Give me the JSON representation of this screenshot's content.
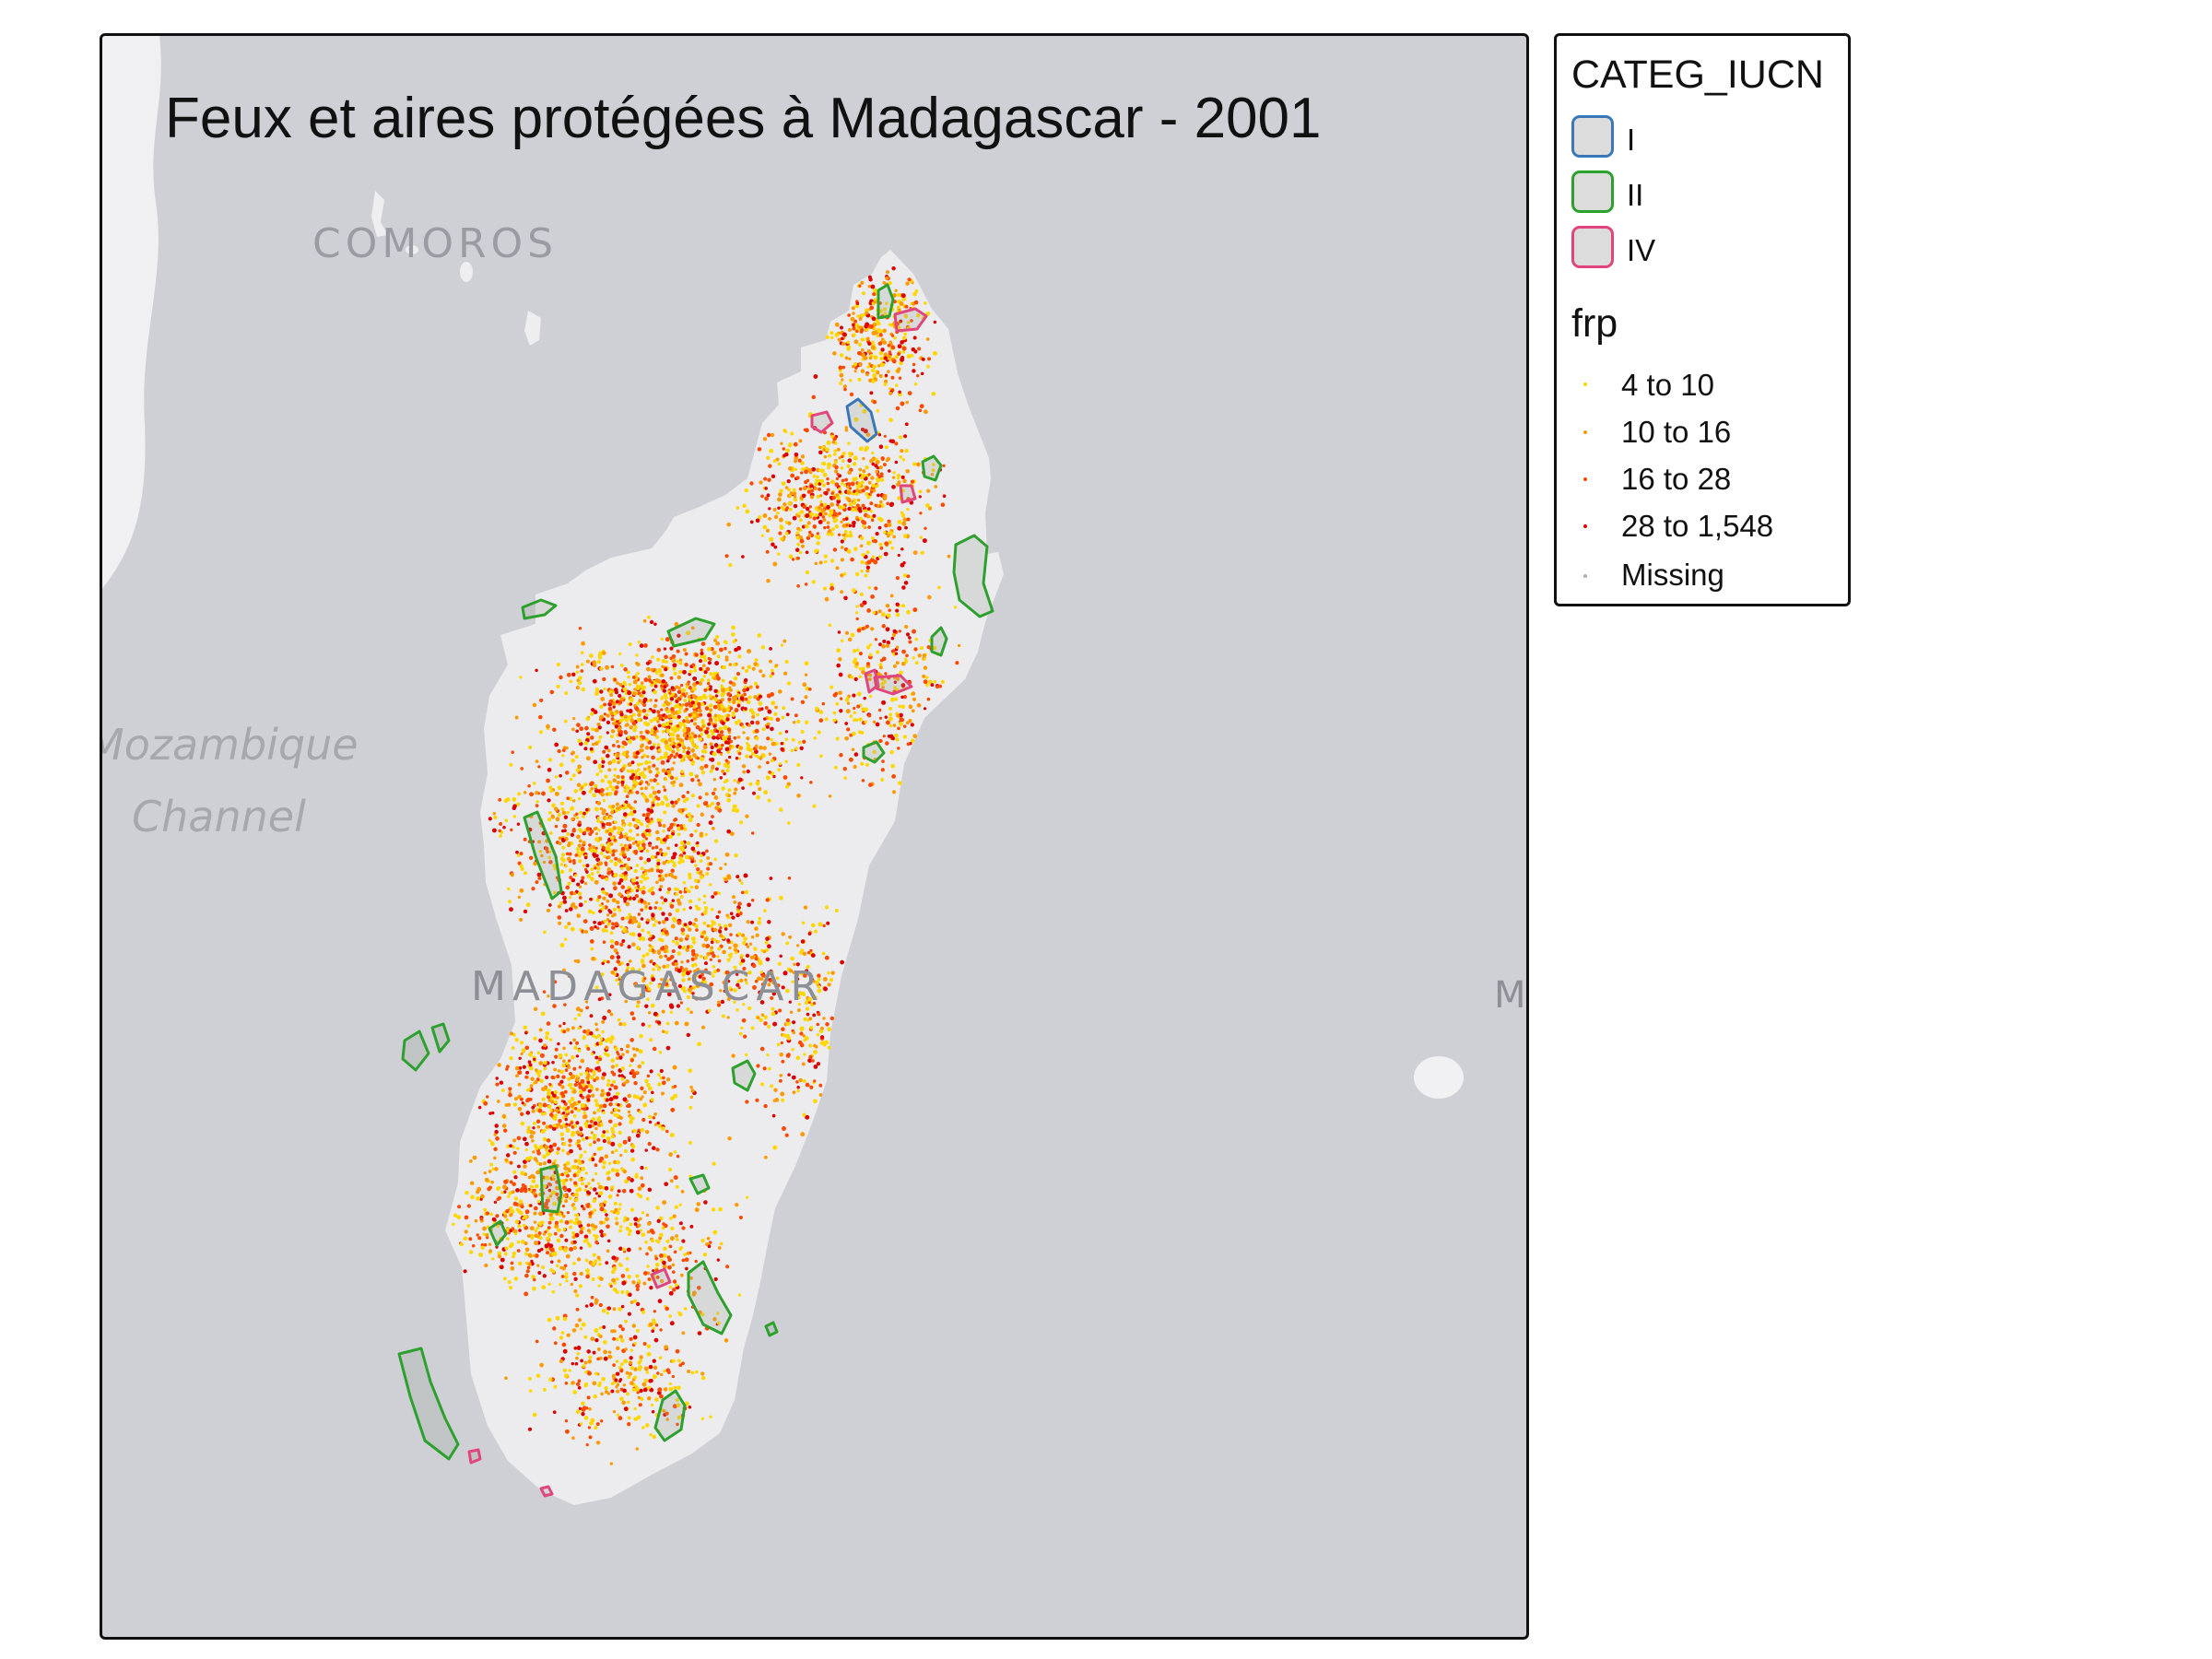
{
  "map": {
    "title": "Feux et aires protégées à Madagascar - 2001",
    "basemap_labels": {
      "comoros": "COMOROS",
      "mozambique_line1": "Mozambique",
      "mozambique_line2": "Channel",
      "madagascar": "MADAGASCAR",
      "edge_partial": "M"
    },
    "colors": {
      "ocean": "#cfd0d5",
      "land": "#ececee",
      "category_I": "#3a76b8",
      "category_II": "#2ea02e",
      "category_IV": "#e0457b",
      "frp_4_10": "#ffd700",
      "frp_10_16": "#ff9a00",
      "frp_16_28": "#ff4a00",
      "frp_28_1548": "#dd0000",
      "missing": "#b0b0b0"
    }
  },
  "legend": {
    "categ_title": "CATEG_IUCN",
    "categories": [
      {
        "label": "I",
        "color": "#3a76b8"
      },
      {
        "label": "II",
        "color": "#2ea02e"
      },
      {
        "label": "IV",
        "color": "#e0457b"
      }
    ],
    "frp_title": "frp",
    "frp_classes": [
      {
        "label": "4 to 10",
        "color": "#ffd700"
      },
      {
        "label": "10 to 16",
        "color": "#ff9a00"
      },
      {
        "label": "16 to 28",
        "color": "#ff4a00"
      },
      {
        "label": "28 to 1,548",
        "color": "#dd0000"
      },
      {
        "label": "Missing",
        "color": "#b0b0b0"
      }
    ]
  }
}
